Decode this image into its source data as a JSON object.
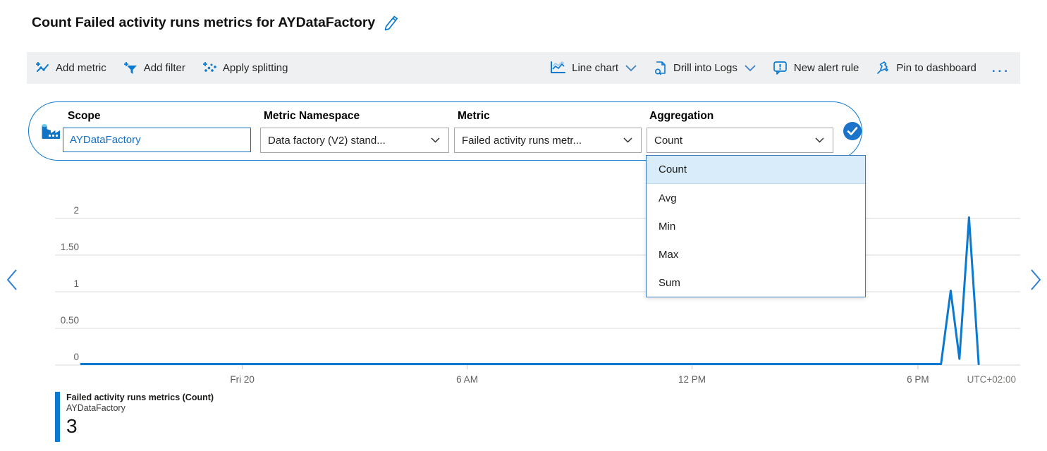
{
  "title": {
    "text": "Count Failed activity runs metrics for AYDataFactory"
  },
  "toolbar": {
    "add_metric": "Add metric",
    "add_filter": "Add filter",
    "apply_splitting": "Apply splitting",
    "chart_type": "Line chart",
    "drill_into_logs": "Drill into Logs",
    "new_alert_rule": "New alert rule",
    "pin_to_dashboard": "Pin to dashboard",
    "more": "..."
  },
  "metric_selector": {
    "scope": {
      "label": "Scope",
      "value": "AYDataFactory"
    },
    "namespace": {
      "label": "Metric Namespace",
      "value": "Data factory (V2) stand..."
    },
    "metric": {
      "label": "Metric",
      "value": "Failed activity runs metr..."
    },
    "aggregation": {
      "label": "Aggregation",
      "value": "Count"
    }
  },
  "aggregation_dropdown": {
    "options": [
      {
        "label": "Count",
        "selected": true
      },
      {
        "label": "Avg",
        "selected": false
      },
      {
        "label": "Min",
        "selected": false
      },
      {
        "label": "Max",
        "selected": false
      },
      {
        "label": "Sum",
        "selected": false
      }
    ]
  },
  "legend": {
    "metric_name": "Failed activity runs metrics (Count)",
    "resource": "AYDataFactory",
    "value": "3"
  },
  "chart_data": {
    "type": "line",
    "title": "Count Failed activity runs metrics for AYDataFactory",
    "xlabel": "",
    "ylabel": "",
    "ylim": [
      0,
      2
    ],
    "grid": true,
    "legend_position": "bottom-left",
    "y_ticks": [
      {
        "value": 2,
        "label": "2"
      },
      {
        "value": 1.5,
        "label": "1.50"
      },
      {
        "value": 1,
        "label": "1"
      },
      {
        "value": 0.5,
        "label": "0.50"
      },
      {
        "value": 0,
        "label": "0"
      }
    ],
    "x_ticks": [
      {
        "pos": 0.194,
        "label": "Fri 20"
      },
      {
        "pos": 0.427,
        "label": "6 AM"
      },
      {
        "pos": 0.66,
        "label": "12 PM"
      },
      {
        "pos": 0.894,
        "label": "6 PM"
      }
    ],
    "timezone_label": "UTC+02:00",
    "series": [
      {
        "name": "Failed activity runs metrics (Count)",
        "resource": "AYDataFactory",
        "color": "#0b79d0",
        "aggregation": "Count",
        "total": 3,
        "points": [
          {
            "x": 0.027,
            "y": 0
          },
          {
            "x": 0.918,
            "y": 0
          },
          {
            "x": 0.928,
            "y": 1
          },
          {
            "x": 0.937,
            "y": 0.07
          },
          {
            "x": 0.947,
            "y": 2
          },
          {
            "x": 0.957,
            "y": 0
          }
        ]
      }
    ]
  },
  "colors": {
    "accent": "#0b79d0",
    "pill_border": "#1f74c8",
    "toolbar_bg": "#eff0f1",
    "dropdown_highlight": "#d8ecfa",
    "gridline": "#d8d8d8",
    "axis_text": "#605e5c"
  }
}
